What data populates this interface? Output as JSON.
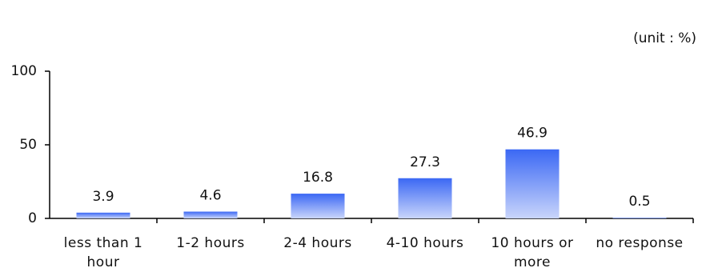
{
  "chart_data": {
    "type": "bar",
    "unit_note": "(unit : %)",
    "categories": [
      "less than 1 hour",
      "1-2 hours",
      "2-4 hours",
      "4-10 hours",
      "10 hours or more",
      "no response"
    ],
    "values": [
      3.9,
      4.6,
      16.8,
      27.3,
      46.9,
      0.5
    ],
    "color": "#3b68f4",
    "ylim": [
      0,
      100
    ],
    "yticks": [
      0,
      50,
      100
    ]
  }
}
